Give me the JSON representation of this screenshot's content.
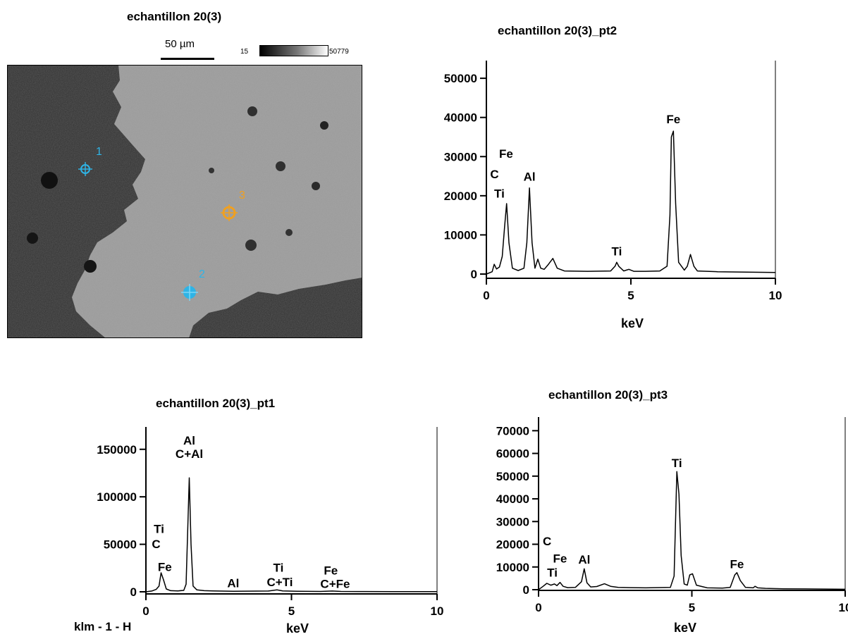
{
  "sem": {
    "title": "echantillon 20(3)",
    "scalebar": "50 µm",
    "gray_min": "15",
    "gray_max": "50779",
    "markers": [
      {
        "label": "1",
        "color": "#2fb4e6"
      },
      {
        "label": "2",
        "color": "#2fb4e6"
      },
      {
        "label": "3",
        "color": "#f0a020"
      }
    ]
  },
  "footer_label": "klm - 1 - H",
  "chart_data": [
    {
      "type": "line",
      "title": "echantillon 20(3)_pt2",
      "xlabel": "keV",
      "ylabel": "",
      "xlim": [
        0,
        10
      ],
      "ylim": [
        0,
        52000
      ],
      "xticks": [
        0,
        5,
        10
      ],
      "xtick_labels": [
        "0",
        "5",
        "10"
      ],
      "yticks": [
        0,
        10000,
        20000,
        30000,
        40000,
        50000
      ],
      "series": [
        {
          "x": [
            0.0,
            0.2,
            0.27,
            0.35,
            0.45,
            0.55,
            0.63,
            0.7,
            0.78,
            0.9,
            1.1,
            1.3,
            1.4,
            1.49,
            1.58,
            1.68,
            1.78,
            1.88,
            2.0,
            2.15,
            2.3,
            2.45,
            2.7,
            3.5,
            4.3,
            4.45,
            4.51,
            4.58,
            4.75,
            4.93,
            5.1,
            5.5,
            6.0,
            6.25,
            6.35,
            6.4,
            6.47,
            6.55,
            6.65,
            6.85,
            6.95,
            7.06,
            7.18,
            7.3,
            8.0,
            9.0,
            10.0
          ],
          "y": [
            0,
            600,
            2500,
            1300,
            1800,
            4500,
            12000,
            18000,
            8000,
            1500,
            900,
            1500,
            8000,
            22000,
            8000,
            1500,
            3800,
            1500,
            1200,
            2500,
            4000,
            1500,
            800,
            700,
            800,
            2000,
            3000,
            2000,
            800,
            1200,
            700,
            700,
            800,
            2000,
            15000,
            35000,
            36500,
            18000,
            3000,
            1000,
            2000,
            5000,
            2000,
            800,
            600,
            500,
            400
          ]
        }
      ],
      "annotations": [
        {
          "text": "C",
          "x": 0.28,
          "y": 24500
        },
        {
          "text": "Ti",
          "x": 0.45,
          "y": 19500
        },
        {
          "text": "Fe",
          "x": 0.68,
          "y": 29700
        },
        {
          "text": "Al",
          "x": 1.49,
          "y": 23800
        },
        {
          "text": "Ti",
          "x": 4.51,
          "y": 4800
        },
        {
          "text": "Fe",
          "x": 6.47,
          "y": 38500
        }
      ]
    },
    {
      "type": "line",
      "title": "echantillon 20(3)_pt1",
      "xlabel": "keV",
      "ylabel": "",
      "xlim": [
        0,
        10
      ],
      "ylim": [
        0,
        178000
      ],
      "xticks": [
        0,
        5,
        10
      ],
      "xtick_labels": [
        "0",
        "5",
        "10"
      ],
      "yticks": [
        0,
        50000,
        100000,
        150000
      ],
      "series": [
        {
          "x": [
            0.0,
            0.2,
            0.35,
            0.45,
            0.52,
            0.6,
            0.7,
            0.85,
            1.1,
            1.3,
            1.38,
            1.45,
            1.49,
            1.55,
            1.62,
            1.75,
            2.0,
            2.3,
            3.0,
            4.2,
            4.5,
            4.7,
            5.2,
            6.0,
            6.4,
            6.7,
            7.5,
            8.5,
            10.0
          ],
          "y": [
            0,
            800,
            2500,
            6000,
            20000,
            13000,
            3000,
            1200,
            1000,
            1500,
            8000,
            80000,
            120000,
            50000,
            6000,
            2000,
            1200,
            900,
            600,
            800,
            2000,
            900,
            500,
            400,
            800,
            400,
            300,
            200,
            200
          ]
        }
      ],
      "annotations": [
        {
          "text": "Ti",
          "x": 0.45,
          "y": 61800
        },
        {
          "text": "C",
          "x": 0.35,
          "y": 45800
        },
        {
          "text": "Fe",
          "x": 0.65,
          "y": 22000
        },
        {
          "text": "Al",
          "x": 1.49,
          "y": 155000
        },
        {
          "text": "C+Al",
          "x": 1.49,
          "y": 141000
        },
        {
          "text": "Al",
          "x": 3.0,
          "y": 5000
        },
        {
          "text": "Ti",
          "x": 4.55,
          "y": 21000
        },
        {
          "text": "C+Ti",
          "x": 4.6,
          "y": 6000
        },
        {
          "text": "Fe",
          "x": 6.35,
          "y": 18000
        },
        {
          "text": "C+Fe",
          "x": 6.5,
          "y": 4000
        }
      ]
    },
    {
      "type": "line",
      "title": "echantillon 20(3)_pt3",
      "xlabel": "keV",
      "ylabel": "",
      "xlim": [
        0,
        10
      ],
      "ylim": [
        0,
        76000
      ],
      "xticks": [
        0,
        5,
        10
      ],
      "xtick_labels": [
        "0",
        "5",
        "10"
      ],
      "yticks": [
        0,
        10000,
        20000,
        30000,
        40000,
        50000,
        60000,
        70000
      ],
      "series": [
        {
          "x": [
            0.0,
            0.15,
            0.27,
            0.4,
            0.52,
            0.6,
            0.7,
            0.8,
            0.95,
            1.2,
            1.4,
            1.49,
            1.58,
            1.7,
            1.9,
            2.15,
            2.35,
            2.6,
            3.0,
            3.5,
            4.3,
            4.42,
            4.51,
            4.58,
            4.65,
            4.75,
            4.85,
            4.93,
            5.02,
            5.15,
            5.5,
            6.0,
            6.25,
            6.4,
            6.47,
            6.58,
            6.75,
            7.0,
            7.06,
            7.15,
            7.4,
            8.0,
            9.0,
            10.0
          ],
          "y": [
            0,
            1500,
            2800,
            2000,
            2500,
            1800,
            3200,
            1500,
            900,
            1000,
            3500,
            9200,
            3000,
            1200,
            1400,
            2600,
            1500,
            1000,
            900,
            800,
            1000,
            6000,
            52000,
            42000,
            15000,
            2500,
            2000,
            6500,
            7000,
            2000,
            800,
            700,
            1000,
            6500,
            7500,
            4000,
            1000,
            800,
            1500,
            800,
            600,
            400,
            300,
            200
          ]
        }
      ],
      "annotations": [
        {
          "text": "C",
          "x": 0.28,
          "y": 19500
        },
        {
          "text": "Fe",
          "x": 0.7,
          "y": 12000
        },
        {
          "text": "Ti",
          "x": 0.45,
          "y": 5800
        },
        {
          "text": "Al",
          "x": 1.49,
          "y": 11500
        },
        {
          "text": "Ti",
          "x": 4.51,
          "y": 54000
        },
        {
          "text": "Fe",
          "x": 6.47,
          "y": 9500
        }
      ]
    }
  ]
}
